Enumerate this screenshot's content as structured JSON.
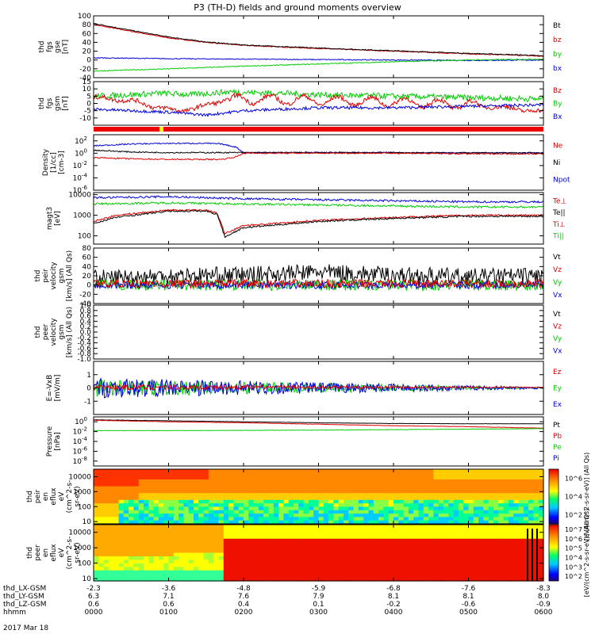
{
  "title": "P3 (TH-D) fields and ground moments overview",
  "colors": {
    "black": "#000000",
    "red": "#dd0000",
    "green": "#00cc00",
    "blue": "#0000dd",
    "yellow": "#ffff00",
    "bar_red": "#ee0000"
  },
  "chart_data": [
    {
      "type": "line",
      "id": "bgse",
      "ylabel_lines": [
        "thd",
        "fgs",
        "gse",
        "[nT]"
      ],
      "ylim": [
        -40,
        100
      ],
      "ytick_labels": [
        "100",
        "80",
        "60",
        "40",
        "20",
        "0",
        "-20",
        "-40"
      ],
      "ytick_values": [
        100,
        80,
        60,
        40,
        20,
        0,
        -20,
        -40
      ],
      "legend": [
        "Bt",
        "bz",
        "by",
        "bx"
      ],
      "legend_colors": [
        "black",
        "red",
        "green",
        "blue"
      ],
      "series": [
        {
          "color": "red",
          "x": [
            0,
            0.5,
            1,
            1.5,
            2,
            3,
            4,
            5,
            5.8,
            6
          ],
          "y": [
            80,
            65,
            50,
            40,
            33,
            26,
            20,
            14,
            10,
            8
          ],
          "noise": 1
        },
        {
          "color": "black",
          "x": [
            0,
            0.5,
            1,
            1.5,
            2,
            3,
            4,
            5,
            5.8,
            6
          ],
          "y": [
            83,
            67,
            52,
            41,
            34,
            27,
            21,
            15,
            11,
            9
          ],
          "noise": 1
        },
        {
          "color": "blue",
          "x": [
            0,
            1,
            2,
            3,
            4,
            5,
            6
          ],
          "y": [
            5,
            3,
            2,
            1,
            0,
            -1,
            0
          ],
          "noise": 1
        },
        {
          "color": "green",
          "x": [
            0,
            1,
            2,
            3,
            4,
            5,
            6
          ],
          "y": [
            -25,
            -20,
            -14,
            -9,
            -4,
            0,
            2
          ],
          "noise": 1
        }
      ]
    },
    {
      "type": "line",
      "id": "bgsm",
      "ylabel_lines": [
        "thd",
        "fgs",
        "gsm",
        "[nT]"
      ],
      "ylim": [
        -15,
        15
      ],
      "ytick_labels": [
        "15",
        "10",
        "5",
        "0",
        "-5",
        "-10"
      ],
      "ytick_values": [
        15,
        10,
        5,
        0,
        -5,
        -10
      ],
      "legend": [
        "Bz",
        "By",
        "Bx"
      ],
      "legend_colors": [
        "red",
        "green",
        "blue"
      ],
      "series": [
        {
          "color": "green",
          "x": [
            0,
            0.5,
            0.9,
            1.3,
            1.8,
            2.5,
            3,
            4,
            5,
            6
          ],
          "y": [
            5,
            6,
            7,
            6,
            8,
            7,
            6,
            5,
            4,
            3
          ],
          "noise": 2
        },
        {
          "color": "red",
          "x": [
            0,
            0.5,
            0.8,
            1.1,
            1.4,
            1.7,
            2,
            3,
            4,
            5,
            5.5,
            6
          ],
          "y": [
            4,
            2,
            -2,
            -5,
            -3,
            2,
            3,
            2,
            1,
            -1,
            -3,
            -6
          ],
          "noise": 1.5,
          "wave": 3
        },
        {
          "color": "blue",
          "x": [
            0,
            1,
            1.5,
            2,
            3,
            4,
            5,
            6
          ],
          "y": [
            -4,
            -6,
            -8,
            -5,
            -3,
            -3,
            -2,
            -1
          ],
          "noise": 1
        }
      ]
    },
    {
      "type": "line",
      "id": "density",
      "ylog": true,
      "ylabel_lines": [
        "Density",
        "[1/cc]",
        "[cm-3]"
      ],
      "ylim_exp": [
        -6,
        3
      ],
      "ytick_exp": [
        2,
        0,
        -2,
        -4,
        -6
      ],
      "legend": [
        "Ne",
        "Ni",
        "Npot"
      ],
      "legend_colors": [
        "red",
        "black",
        "blue"
      ],
      "series": [
        {
          "color": "blue",
          "x": [
            0,
            0.5,
            1,
            1.5,
            1.7,
            1.9,
            2,
            3,
            4,
            5,
            6
          ],
          "y": [
            1.2,
            1.5,
            1.6,
            1.6,
            1.5,
            1.0,
            0.1,
            0.1,
            0.1,
            0.05,
            0.05
          ],
          "noise": 0.1
        },
        {
          "color": "black",
          "x": [
            0,
            0.5,
            1,
            1.5,
            1.7,
            1.9,
            2,
            3,
            4,
            5,
            6
          ],
          "y": [
            0.5,
            0.2,
            0.1,
            0.1,
            0.1,
            0.1,
            0.1,
            0.1,
            0.1,
            0.05,
            0.05
          ],
          "noise": 0.1
        },
        {
          "color": "red",
          "x": [
            0,
            0.5,
            1,
            1.5,
            1.7,
            1.9,
            2,
            3,
            4,
            5,
            6
          ],
          "y": [
            -0.7,
            -0.9,
            -1.0,
            -1.0,
            -1.0,
            -0.6,
            0.0,
            0.0,
            0.0,
            -0.1,
            -0.1
          ],
          "noise": 0.1
        }
      ]
    },
    {
      "type": "line",
      "id": "temp",
      "ylog": true,
      "ylabel_lines": [
        "magt3",
        "[eV]"
      ],
      "ylim_exp": [
        1.6,
        4.1
      ],
      "ytick_exp": [
        4,
        3,
        2
      ],
      "ytick_labels": [
        "10000",
        "1000",
        "100"
      ],
      "legend": [
        "Te⊥",
        "Te||",
        "Ti⊥",
        "Ti||"
      ],
      "legend_colors": [
        "red",
        "black",
        "red",
        "green"
      ],
      "series": [
        {
          "color": "blue",
          "x": [
            0,
            1,
            2,
            3,
            4,
            5,
            6
          ],
          "y": [
            3.85,
            3.9,
            3.8,
            3.75,
            3.7,
            3.65,
            3.65
          ],
          "noise": 0.05
        },
        {
          "color": "green",
          "x": [
            0,
            1,
            2,
            3,
            4,
            5,
            6
          ],
          "y": [
            3.55,
            3.6,
            3.55,
            3.5,
            3.45,
            3.4,
            3.4
          ],
          "noise": 0.05
        },
        {
          "color": "red",
          "x": [
            0,
            0.3,
            1,
            1.5,
            1.65,
            1.75,
            2,
            3,
            4,
            5,
            6
          ],
          "y": [
            2.7,
            3.0,
            3.25,
            3.25,
            3.1,
            2.1,
            2.5,
            2.75,
            2.9,
            3.0,
            3.0
          ],
          "noise": 0.04
        },
        {
          "color": "black",
          "x": [
            0,
            0.3,
            1,
            1.5,
            1.65,
            1.75,
            2,
            3,
            4,
            5,
            6
          ],
          "y": [
            2.6,
            2.9,
            3.2,
            3.2,
            3.05,
            1.95,
            2.4,
            2.7,
            2.85,
            2.95,
            2.95
          ],
          "noise": 0.04
        }
      ]
    },
    {
      "type": "line",
      "id": "vpeir",
      "ylabel_lines": [
        "thd",
        "peir",
        "velocity",
        "gsm",
        "[km/s] (All Qs)"
      ],
      "ylim": [
        -40,
        80
      ],
      "ytick_labels": [
        "80",
        "60",
        "40",
        "20",
        "0",
        "-20",
        "-40"
      ],
      "ytick_values": [
        80,
        60,
        40,
        20,
        0,
        -20,
        -40
      ],
      "legend": [
        "Vt",
        "Vz",
        "Vy",
        "Vx"
      ],
      "legend_colors": [
        "black",
        "red",
        "green",
        "blue"
      ],
      "series": [
        {
          "color": "black",
          "x": [
            0,
            1,
            2,
            3,
            4,
            5,
            6
          ],
          "y": [
            15,
            20,
            22,
            28,
            22,
            18,
            20
          ],
          "noise": 18
        },
        {
          "color": "green",
          "x": [
            0,
            6
          ],
          "y": [
            0,
            0
          ],
          "noise": 12
        },
        {
          "color": "blue",
          "x": [
            0,
            6
          ],
          "y": [
            0,
            0
          ],
          "noise": 8
        },
        {
          "color": "red",
          "x": [
            0,
            6
          ],
          "y": [
            3,
            3
          ],
          "noise": 9
        }
      ]
    },
    {
      "type": "empty",
      "id": "vpeer",
      "ylabel_lines": [
        "thd",
        "peer",
        "velocity",
        "gsm",
        "[km/s] (All Qs)"
      ],
      "ylim": [
        -1,
        1
      ],
      "ytick_labels": [
        "1.0",
        "0.8",
        "0.6",
        "0.4",
        "0.2",
        "0.0",
        "-0.2",
        "-0.4",
        "-0.6",
        "-0.8",
        "-1.0"
      ],
      "ytick_values": [
        1,
        0.8,
        0.6,
        0.4,
        0.2,
        0,
        -0.2,
        -0.4,
        -0.6,
        -0.8,
        -1
      ],
      "legend": [
        "Vt",
        "Vz",
        "Vy",
        "Vx"
      ],
      "legend_colors": [
        "black",
        "red",
        "green",
        "blue"
      ],
      "series": []
    },
    {
      "type": "line",
      "id": "efield",
      "ylabel_lines": [
        "E=-VxB",
        "[mV/m]"
      ],
      "ylim": [
        -2,
        2
      ],
      "ytick_labels": [
        "1",
        "0",
        "-1"
      ],
      "ytick_values": [
        1,
        0,
        -1
      ],
      "legend": [
        "Ez",
        "Ey",
        "Ex"
      ],
      "legend_colors": [
        "red",
        "green",
        "blue"
      ],
      "series": [
        {
          "color": "green",
          "x": [
            0,
            1,
            2,
            3,
            4,
            5,
            6
          ],
          "y": [
            0,
            0,
            0,
            0,
            0,
            0,
            0
          ],
          "noise": 0.6,
          "decay": true
        },
        {
          "color": "blue",
          "x": [
            0,
            1,
            2,
            3,
            4,
            5,
            6
          ],
          "y": [
            0,
            0,
            0,
            0,
            0,
            0,
            0
          ],
          "noise": 0.7,
          "decay": true
        },
        {
          "color": "red",
          "x": [
            0,
            6
          ],
          "y": [
            0.05,
            0.05
          ],
          "noise": 0.2,
          "decay": true
        }
      ]
    },
    {
      "type": "line",
      "id": "pressure",
      "ylog": true,
      "ylabel_lines": [
        "Pressure",
        "[nPa]"
      ],
      "ylim_exp": [
        -9,
        1
      ],
      "ytick_exp": [
        0,
        -2,
        -4,
        -6,
        -8
      ],
      "legend": [
        "Pt",
        "Pb",
        "Pe",
        "Pi"
      ],
      "legend_colors": [
        "black",
        "red",
        "green",
        "blue"
      ],
      "series": [
        {
          "color": "black",
          "x": [
            0,
            1,
            2,
            3,
            4,
            5,
            6
          ],
          "y": [
            0.4,
            0.2,
            0.0,
            -0.2,
            -0.35,
            -0.4,
            -0.4
          ],
          "noise": 0.03
        },
        {
          "color": "red",
          "x": [
            0,
            1,
            2,
            3,
            4,
            5,
            6
          ],
          "y": [
            0.3,
            0.0,
            -0.2,
            -0.5,
            -0.8,
            -1.0,
            -1.3
          ],
          "noise": 0.03
        },
        {
          "color": "green",
          "x": [
            0,
            1,
            2,
            3,
            4,
            5,
            6
          ],
          "y": [
            -1.8,
            -1.8,
            -1.75,
            -1.7,
            -1.6,
            -1.5,
            -1.4
          ],
          "noise": 0.03
        }
      ]
    },
    {
      "type": "heatmap",
      "id": "ieflux",
      "ylabel_lines": [
        "thd",
        "peir",
        "en",
        "eflux",
        "eV",
        "(cm^2-s-",
        "sr-eV)"
      ],
      "ytick_labels": [
        "10000",
        "1000",
        "100",
        "10"
      ],
      "ytick_exp": [
        4,
        3,
        2,
        1
      ],
      "ylim_exp": [
        0.85,
        4.5
      ],
      "colorbar_labels": [
        "10^6",
        "10^4",
        "10^2"
      ],
      "colorbar_exp": [
        6,
        4,
        2
      ],
      "colorbar_range": [
        1,
        7
      ],
      "colorbar_title": "[eV/(cm^2-s-sr-eV)] (All Qs)"
    },
    {
      "type": "heatmap",
      "id": "eeflux",
      "ylabel_lines": [
        "thd",
        "peer",
        "en",
        "eflux",
        "eV",
        "(cm^2-s-",
        "sr-eV)"
      ],
      "ytick_labels": [
        "10000",
        "1000",
        "100",
        "10"
      ],
      "ytick_exp": [
        4,
        3,
        2,
        1
      ],
      "ylim_exp": [
        0.85,
        4.5
      ],
      "colorbar_labels": [
        "10^7",
        "10^6",
        "10^5",
        "10^4",
        "10^3",
        "10^2"
      ],
      "colorbar_exp": [
        7,
        6,
        5,
        4,
        3,
        2
      ],
      "colorbar_range": [
        1.5,
        7.5
      ],
      "colorbar_title": "[eV/(cm^2-s-sr-eV)] (All Qs)"
    }
  ],
  "xaxis": {
    "rows": [
      {
        "label": "thd_LX-GSM",
        "values": [
          "-2.3",
          "-3.6",
          "-4.8",
          "-5.9",
          "-6.8",
          "-7.6",
          "-8.3"
        ]
      },
      {
        "label": "thd_LY-GSM",
        "values": [
          "6.3",
          "7.1",
          "7.6",
          "7.9",
          "8.1",
          "8.1",
          "8.0"
        ]
      },
      {
        "label": "thd_LZ-GSM",
        "values": [
          "0.6",
          "0.6",
          "0.4",
          "0.1",
          "-0.2",
          "-0.6",
          "-0.9"
        ]
      },
      {
        "label": "hhmm",
        "values": [
          "0000",
          "0100",
          "0200",
          "0300",
          "0400",
          "0500",
          "0600"
        ]
      }
    ],
    "date": "2017 Mar 18"
  }
}
